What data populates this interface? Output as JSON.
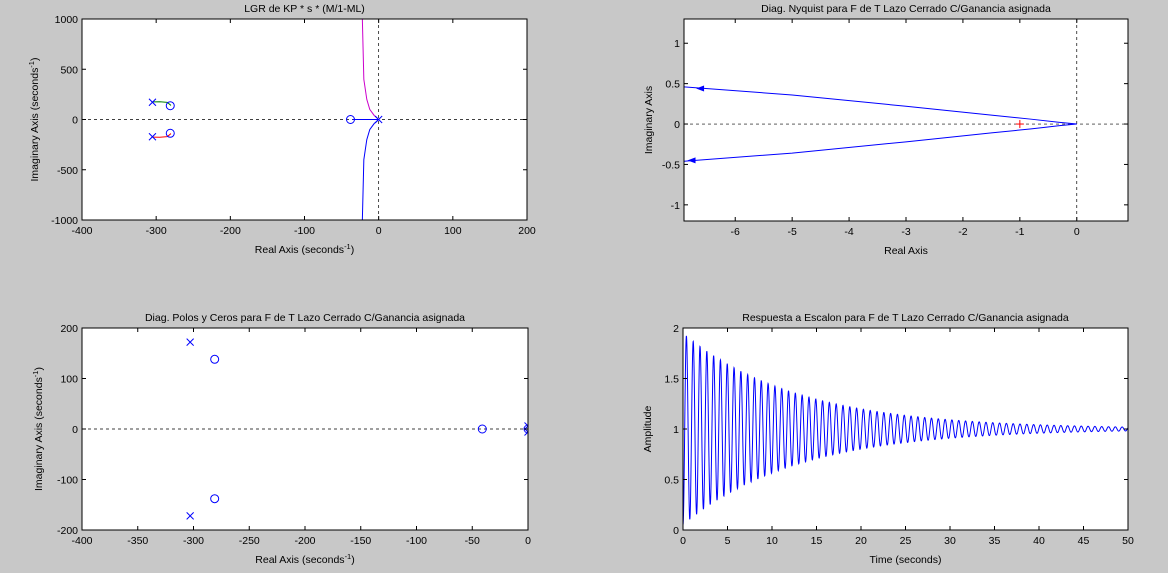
{
  "figure": {
    "background": "#c8c8c8"
  },
  "chart_data": [
    {
      "id": "rlocus",
      "type": "line",
      "title": "LGR de KP * s * (M/1-ML)",
      "xlabel": "Real Axis (seconds",
      "ylabel": "Imaginary Axis (seconds",
      "unit_superscript": "-1",
      "xlim": [
        -400,
        200
      ],
      "ylim": [
        -1000,
        1000
      ],
      "xticks": [
        -400,
        -300,
        -200,
        -100,
        0,
        100,
        200
      ],
      "xtick_labels": [
        "-400",
        "-300",
        "-200",
        "-100",
        "0",
        "100",
        "200"
      ],
      "yticks": [
        -1000,
        -500,
        0,
        500,
        1000
      ],
      "ytick_labels": [
        "-1000",
        "-500",
        "0",
        "500",
        "1000"
      ],
      "grid": false,
      "series": [
        {
          "color": "#0000ff",
          "x": [
            -22,
            -21,
            -20,
            -16,
            -12,
            -6,
            0
          ],
          "y": [
            -1000,
            -700,
            -400,
            -200,
            -100,
            -40,
            0
          ]
        },
        {
          "color": "#cc00cc",
          "x": [
            -22,
            -21,
            -20,
            -16,
            -12,
            -6,
            0
          ],
          "y": [
            1000,
            700,
            400,
            200,
            100,
            40,
            0
          ]
        },
        {
          "color": "#0000ff",
          "x": [
            -35,
            -18,
            0
          ],
          "y": [
            0,
            0,
            0
          ]
        },
        {
          "color": "#008000",
          "x": [
            -305,
            -295,
            -285,
            -280
          ],
          "y": [
            175,
            176,
            170,
            140
          ]
        },
        {
          "color": "#ff0000",
          "x": [
            -305,
            -295,
            -285,
            -280
          ],
          "y": [
            -175,
            -176,
            -170,
            -140
          ]
        }
      ],
      "poles": [
        [
          -305,
          172
        ],
        [
          -305,
          -172
        ],
        [
          0,
          0
        ]
      ],
      "zeros": [
        [
          -281,
          137
        ],
        [
          -281,
          -137
        ],
        [
          -38,
          0
        ]
      ]
    },
    {
      "id": "nyquist",
      "type": "line",
      "title": "Diag. Nyquist para F de T Lazo Cerrado C/Ganancia asignada",
      "xlabel": "Real Axis",
      "ylabel": "Imaginary Axis",
      "xlim": [
        -6.9,
        0.9
      ],
      "ylim": [
        -1.2,
        1.3
      ],
      "xticks": [
        -6,
        -5,
        -4,
        -3,
        -2,
        -1,
        0
      ],
      "xtick_labels": [
        "-6",
        "-5",
        "-4",
        "-3",
        "-2",
        "-1",
        "0"
      ],
      "yticks": [
        -1,
        -0.5,
        0,
        0.5,
        1
      ],
      "ytick_labels": [
        "-1",
        "-0.5",
        "0",
        "0.5",
        "1"
      ],
      "grid": false,
      "series": [
        {
          "color": "#0000ff",
          "x": [
            -6.9,
            -5,
            -3,
            -1.5,
            -0.8,
            -0.3,
            0
          ],
          "y": [
            0.46,
            0.36,
            0.22,
            0.11,
            0.06,
            0.02,
            0
          ]
        },
        {
          "color": "#0000ff",
          "x": [
            -6.9,
            -5,
            -3,
            -1.5,
            -0.8,
            -0.3,
            0
          ],
          "y": [
            -0.46,
            -0.36,
            -0.22,
            -0.11,
            -0.06,
            -0.02,
            0
          ]
        }
      ],
      "arrows": [
        [
          -6.6,
          0.44,
          "left"
        ],
        [
          -6.75,
          -0.45,
          "left"
        ]
      ],
      "critical_point": [
        -1,
        0
      ]
    },
    {
      "id": "pzmap",
      "type": "scatter",
      "title": "Diag. Polos y Ceros para F de T Lazo Cerrado C/Ganancia asignada",
      "xlabel": "Real Axis (seconds",
      "ylabel": "Imaginary Axis (seconds",
      "unit_superscript": "-1",
      "xlim": [
        -400,
        0
      ],
      "ylim": [
        -200,
        200
      ],
      "xticks": [
        -400,
        -350,
        -300,
        -250,
        -200,
        -150,
        -100,
        -50,
        0
      ],
      "xtick_labels": [
        "-400",
        "-350",
        "-300",
        "-250",
        "-200",
        "-150",
        "-100",
        "-50",
        "0"
      ],
      "yticks": [
        -200,
        -100,
        0,
        100,
        200
      ],
      "ytick_labels": [
        "-200",
        "-100",
        "0",
        "100",
        "200"
      ],
      "grid": false,
      "poles": [
        [
          -303,
          172
        ],
        [
          -303,
          -172
        ],
        [
          0,
          6
        ],
        [
          0,
          -6
        ]
      ],
      "zeros": [
        [
          -281,
          138
        ],
        [
          -281,
          -138
        ],
        [
          -41,
          0
        ],
        [
          0,
          0
        ]
      ]
    },
    {
      "id": "step",
      "type": "line",
      "title": "Respuesta a Escalon para F de T Lazo Cerrado C/Ganancia asignada",
      "xlabel": "Time (seconds)",
      "ylabel": "Amplitude",
      "xlim": [
        0,
        50
      ],
      "ylim": [
        0,
        2
      ],
      "xticks": [
        0,
        5,
        10,
        15,
        20,
        25,
        30,
        35,
        40,
        45,
        50
      ],
      "xtick_labels": [
        "0",
        "5",
        "10",
        "15",
        "20",
        "25",
        "30",
        "35",
        "40",
        "45",
        "50"
      ],
      "yticks": [
        0,
        0.5,
        1,
        1.5,
        2
      ],
      "ytick_labels": [
        "0",
        "0.5",
        "1",
        "1.5",
        "2"
      ],
      "grid": false,
      "response": {
        "steady_state": 1,
        "overshoot": 0.95,
        "decay_rate": 0.078,
        "period": 0.765
      },
      "series": [
        {
          "color": "#0000ff"
        }
      ]
    }
  ]
}
